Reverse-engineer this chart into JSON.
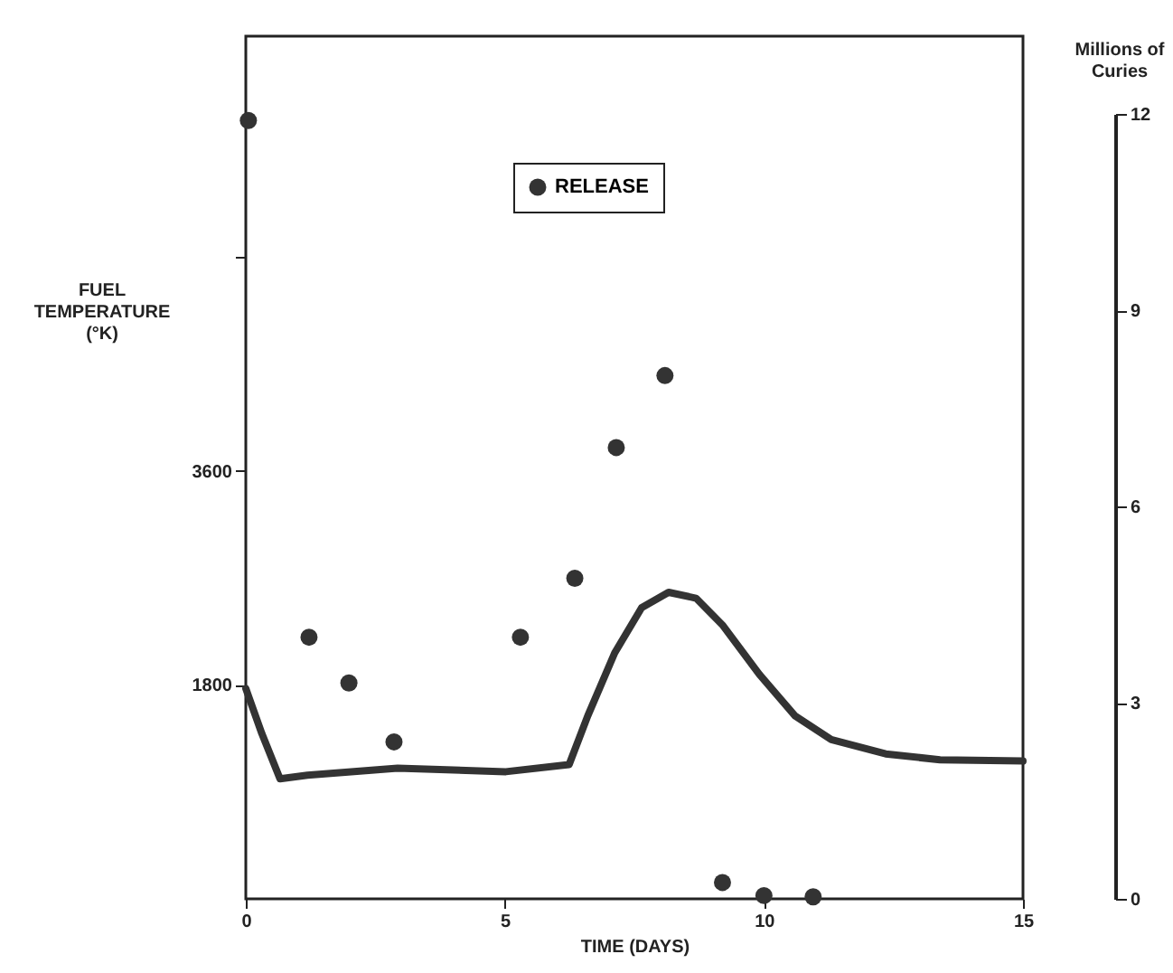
{
  "chart_data": {
    "type": "line",
    "xlabel": "TIME (DAYS)",
    "ylabel": "FUEL TEMPERATURE (°K)",
    "y2label": "Millions of Curies",
    "xlim": [
      0,
      15
    ],
    "xticks": [
      0,
      5,
      10,
      15
    ],
    "ylim": [
      0,
      7260
    ],
    "yticks": [
      {
        "value": 1800,
        "label": "1800"
      },
      {
        "value": 3600,
        "label": "3600"
      },
      {
        "value": 5400,
        "label": null
      }
    ],
    "y2lim": [
      0,
      12
    ],
    "y2ticks": [
      0,
      3,
      6,
      9,
      12
    ],
    "grid": false,
    "legend": "top",
    "series": [
      {
        "type": "line",
        "color": "#333333",
        "x": [
          0,
          0.31,
          0.66,
          1.19,
          2.93,
          5.02,
          6.24,
          6.6,
          7.12,
          7.64,
          8.16,
          8.69,
          9.21,
          9.91,
          10.6,
          11.3,
          12.35,
          13.4,
          15
        ],
        "values": [
          1770,
          1390,
          1010,
          1040,
          1100,
          1070,
          1130,
          1540,
          2070,
          2450,
          2580,
          2530,
          2300,
          1890,
          1540,
          1340,
          1220,
          1170,
          1160
        ]
      },
      {
        "type": "scatter",
        "name": "RELEASE",
        "axis": "y2",
        "color": "#333333",
        "marker": "circle",
        "x": [
          0.05,
          1.22,
          1.99,
          2.86,
          5.3,
          6.35,
          7.15,
          8.09,
          9.2,
          10.0,
          10.95
        ],
        "values": [
          11.9,
          4.0,
          3.3,
          2.4,
          4.0,
          4.9,
          6.9,
          8.0,
          0.25,
          0.05,
          0.03
        ]
      }
    ]
  }
}
